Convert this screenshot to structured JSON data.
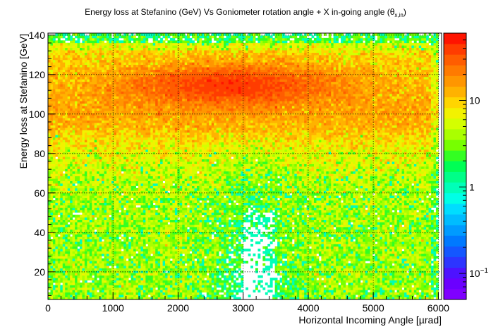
{
  "chart_data": {
    "type": "heatmap",
    "title": {
      "main": "Energy loss at Stefanino (GeV) Vs Goniometer rotation angle + X in-going angle (θ",
      "sub": "x,in",
      "close": ")"
    },
    "xlabel": "Horizontal Incoming Angle [µrad]",
    "ylabel": "Energy loss at Stefanino [GeV]",
    "xlim": [
      0,
      6050
    ],
    "ylim": [
      6,
      141
    ],
    "x_ticks": [
      0,
      1000,
      2000,
      3000,
      4000,
      5000,
      6000
    ],
    "y_ticks": [
      20,
      40,
      60,
      80,
      100,
      120,
      140
    ],
    "x_tick_labels": [
      "0",
      "1000",
      "2000",
      "3000",
      "4000",
      "5000",
      "6000"
    ],
    "y_tick_labels": [
      "20",
      "40",
      "60",
      "80",
      "100",
      "120",
      "140"
    ],
    "grid": true,
    "log_z": true,
    "zlim": [
      0.05,
      60
    ],
    "colorbar": {
      "labels": [
        {
          "value": 10,
          "text": "10"
        },
        {
          "value": 1,
          "text": "1"
        },
        {
          "value": 0.1,
          "base": "10",
          "exp": "−1"
        }
      ]
    },
    "cell_counts_model": {
      "x_range": [
        0,
        6000
      ],
      "y_range": [
        6,
        141
      ],
      "nx": 160,
      "ny": 110,
      "band_peak": {
        "x": 2800,
        "y": 115,
        "value": 40
      },
      "channeling_hole_center_x": 3150,
      "empty_region": {
        "x": [
          3000,
          3500
        ],
        "y": [
          6,
          50
        ]
      },
      "top_edge_y": 136,
      "right_edge_x": 6050
    }
  }
}
